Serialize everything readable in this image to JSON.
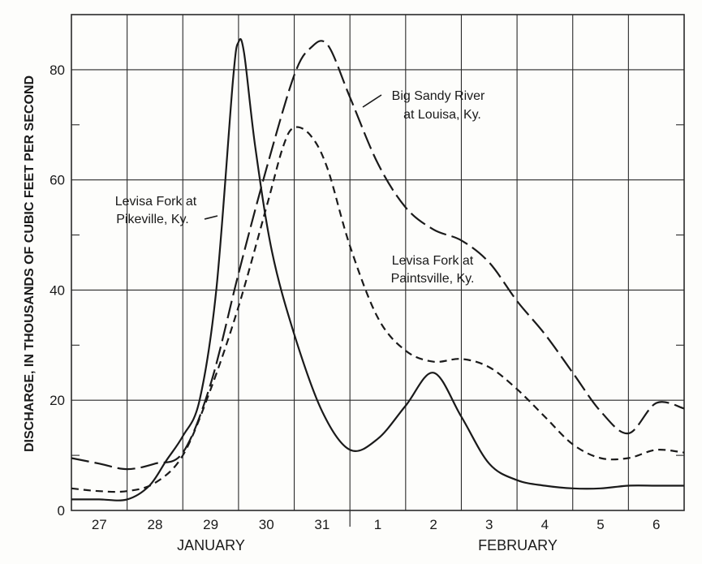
{
  "chart_data": {
    "type": "line",
    "xlabel": "",
    "ylabel": "DISCHARGE, IN THOUSANDS OF CUBIC FEET PER SECOND",
    "ylim": [
      0,
      90
    ],
    "xlim": [
      0,
      11
    ],
    "yticks": [
      0,
      20,
      40,
      60,
      80
    ],
    "day_labels": [
      "27",
      "28",
      "29",
      "30",
      "31",
      "1",
      "2",
      "3",
      "4",
      "5",
      "6"
    ],
    "month_labels": [
      "JANUARY",
      "FEBRUARY"
    ],
    "grid": true,
    "series": [
      {
        "name": "Big Sandy River at Louisa, Ky.",
        "style": "long-dash",
        "x": [
          0,
          0.5,
          1.0,
          1.5,
          2.0,
          2.5,
          3.0,
          3.5,
          4.0,
          4.3,
          4.6,
          5.0,
          5.5,
          6.0,
          6.5,
          7.0,
          7.5,
          8.0,
          8.5,
          9.0,
          9.5,
          10.0,
          10.5,
          11.0
        ],
        "y": [
          9.5,
          8.5,
          7.5,
          8.5,
          10.5,
          23,
          43,
          62,
          79,
          84,
          84.5,
          75,
          63,
          55,
          51,
          49,
          45,
          38,
          32,
          25,
          18,
          14,
          19.5,
          18.5
        ]
      },
      {
        "name": "Levisa Fork at Paintsville, Ky.",
        "style": "short-dash",
        "x": [
          0,
          0.5,
          1.0,
          1.5,
          2.0,
          2.5,
          3.0,
          3.5,
          3.8,
          4.0,
          4.3,
          4.6,
          5.0,
          5.5,
          6.0,
          6.5,
          7.0,
          7.5,
          8.0,
          8.5,
          9.0,
          9.5,
          10.0,
          10.5,
          11.0
        ],
        "y": [
          4,
          3.5,
          3.5,
          5,
          10,
          22,
          37,
          55,
          66,
          69.5,
          68,
          62,
          48,
          35,
          29,
          27,
          27.5,
          26,
          22,
          17,
          12,
          9.5,
          9.5,
          11,
          10.5
        ]
      },
      {
        "name": "Levisa Fork at Pikeville, Ky.",
        "style": "solid",
        "x": [
          0,
          0.5,
          1.0,
          1.4,
          1.7,
          2.0,
          2.3,
          2.6,
          2.9,
          3.0,
          3.1,
          3.3,
          3.6,
          4.0,
          4.5,
          5.0,
          5.5,
          6.0,
          6.5,
          7.0,
          7.5,
          8.0,
          8.5,
          9.0,
          9.5,
          10.0,
          10.5,
          11.0
        ],
        "y": [
          2,
          2,
          2,
          4.5,
          9,
          13.5,
          20,
          40,
          78,
          85,
          83,
          66,
          47,
          32,
          18,
          11,
          13,
          19,
          25,
          17,
          8.5,
          5.5,
          4.5,
          4,
          4,
          4.5,
          4.5,
          4.5
        ]
      }
    ],
    "annotations": [
      {
        "text_lines": [
          "Big Sandy River",
          "at Louisa, Ky."
        ],
        "series": 0
      },
      {
        "text_lines": [
          "Levisa Fork at",
          "Paintsville, Ky."
        ],
        "series": 1
      },
      {
        "text_lines": [
          "Levisa Fork at",
          "Pikeville, Ky."
        ],
        "series": 2
      }
    ],
    "colors": {
      "line": "#1a1a1a",
      "grid": "#2a2a2a",
      "background": "#fdfdfb"
    }
  }
}
